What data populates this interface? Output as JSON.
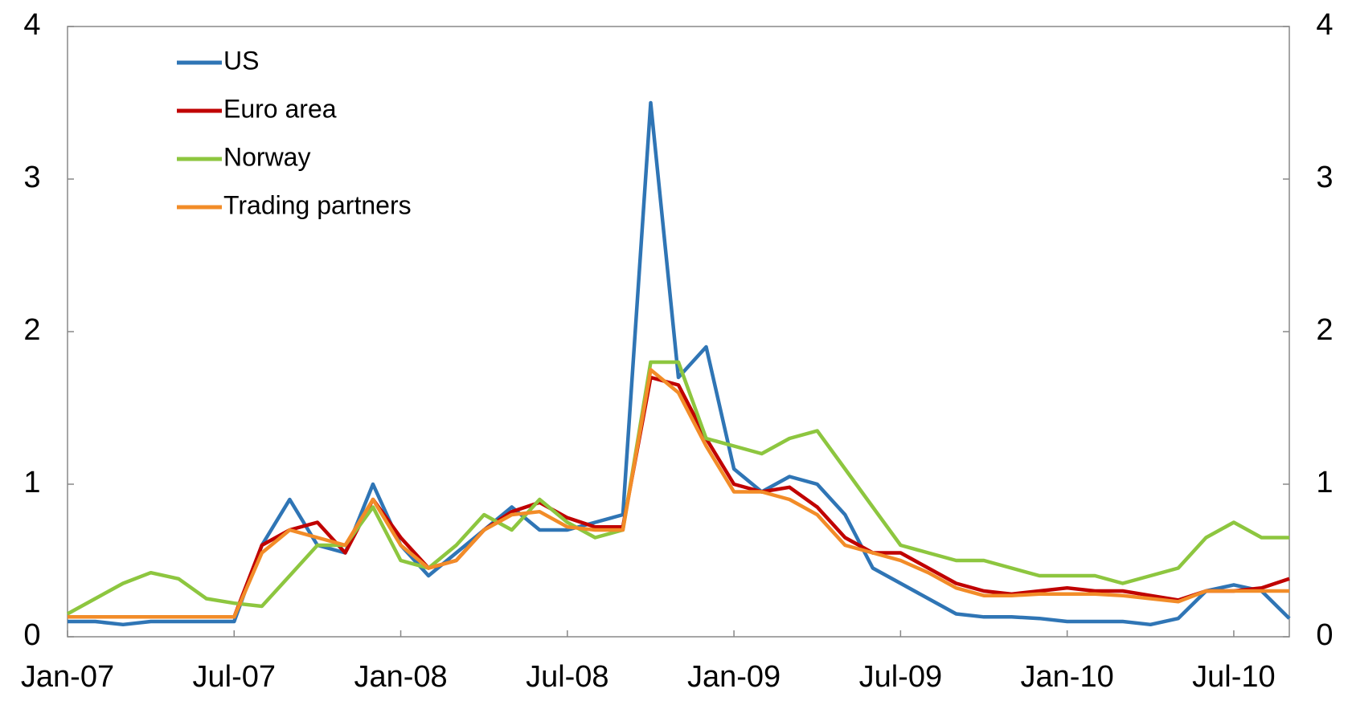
{
  "chart_data": {
    "type": "line",
    "x": [
      "2007-01",
      "2007-02",
      "2007-03",
      "2007-04",
      "2007-05",
      "2007-06",
      "2007-07",
      "2007-08",
      "2007-09",
      "2007-10",
      "2007-11",
      "2007-12",
      "2008-01",
      "2008-02",
      "2008-03",
      "2008-04",
      "2008-05",
      "2008-06",
      "2008-07",
      "2008-08",
      "2008-09",
      "2008-10",
      "2008-11",
      "2008-12",
      "2009-01",
      "2009-02",
      "2009-03",
      "2009-04",
      "2009-05",
      "2009-06",
      "2009-07",
      "2009-08",
      "2009-09",
      "2009-10",
      "2009-11",
      "2009-12",
      "2010-01",
      "2010-02",
      "2010-03",
      "2010-04",
      "2010-05",
      "2010-06",
      "2010-07",
      "2010-08",
      "2010-09"
    ],
    "series": [
      {
        "name": "US",
        "color": "#2f75b5",
        "values": [
          0.1,
          0.1,
          0.08,
          0.1,
          0.1,
          0.1,
          0.1,
          0.6,
          0.9,
          0.6,
          0.55,
          1.0,
          0.6,
          0.4,
          0.55,
          0.7,
          0.85,
          0.7,
          0.7,
          0.75,
          0.8,
          3.5,
          1.7,
          1.9,
          1.1,
          0.95,
          1.05,
          1.0,
          0.8,
          0.45,
          0.35,
          0.25,
          0.15,
          0.13,
          0.13,
          0.12,
          0.1,
          0.1,
          0.1,
          0.08,
          0.12,
          0.3,
          0.34,
          0.3,
          0.12
        ]
      },
      {
        "name": "Euro area",
        "color": "#c00000",
        "values": [
          0.13,
          0.13,
          0.13,
          0.13,
          0.13,
          0.13,
          0.13,
          0.6,
          0.7,
          0.75,
          0.55,
          0.9,
          0.65,
          0.45,
          0.5,
          0.7,
          0.82,
          0.88,
          0.78,
          0.72,
          0.72,
          1.7,
          1.65,
          1.3,
          1.0,
          0.95,
          0.98,
          0.85,
          0.65,
          0.55,
          0.55,
          0.45,
          0.35,
          0.3,
          0.28,
          0.3,
          0.32,
          0.3,
          0.3,
          0.27,
          0.24,
          0.3,
          0.3,
          0.32,
          0.38
        ]
      },
      {
        "name": "Norway",
        "color": "#8dc63f",
        "values": [
          0.15,
          0.25,
          0.35,
          0.42,
          0.38,
          0.25,
          0.22,
          0.2,
          0.4,
          0.6,
          0.6,
          0.85,
          0.5,
          0.45,
          0.6,
          0.8,
          0.7,
          0.9,
          0.75,
          0.65,
          0.7,
          1.8,
          1.8,
          1.3,
          1.25,
          1.2,
          1.3,
          1.35,
          1.1,
          0.85,
          0.6,
          0.55,
          0.5,
          0.5,
          0.45,
          0.4,
          0.4,
          0.4,
          0.35,
          0.4,
          0.45,
          0.65,
          0.75,
          0.65,
          0.65
        ]
      },
      {
        "name": "Trading partners",
        "color": "#f28c28",
        "values": [
          0.13,
          0.13,
          0.13,
          0.13,
          0.13,
          0.13,
          0.13,
          0.55,
          0.7,
          0.65,
          0.6,
          0.9,
          0.6,
          0.45,
          0.5,
          0.7,
          0.8,
          0.82,
          0.72,
          0.7,
          0.7,
          1.75,
          1.6,
          1.25,
          0.95,
          0.95,
          0.9,
          0.8,
          0.6,
          0.55,
          0.5,
          0.42,
          0.32,
          0.27,
          0.27,
          0.28,
          0.28,
          0.28,
          0.27,
          0.25,
          0.23,
          0.3,
          0.3,
          0.3,
          0.3
        ]
      }
    ],
    "xlim": [
      "2007-01",
      "2010-09"
    ],
    "xticks": [
      {
        "value": "2007-01",
        "label": "Jan-07"
      },
      {
        "value": "2007-07",
        "label": "Jul-07"
      },
      {
        "value": "2008-01",
        "label": "Jan-08"
      },
      {
        "value": "2008-07",
        "label": "Jul-08"
      },
      {
        "value": "2009-01",
        "label": "Jan-09"
      },
      {
        "value": "2009-07",
        "label": "Jul-09"
      },
      {
        "value": "2010-01",
        "label": "Jan-10"
      },
      {
        "value": "2010-07",
        "label": "Jul-10"
      }
    ],
    "ylim": [
      0,
      4
    ],
    "yticks": [
      0,
      1,
      2,
      3,
      4
    ],
    "y2lim": [
      0,
      4
    ],
    "y2ticks": [
      0,
      1,
      2,
      3,
      4
    ],
    "legend": "top-left",
    "grid": false
  }
}
